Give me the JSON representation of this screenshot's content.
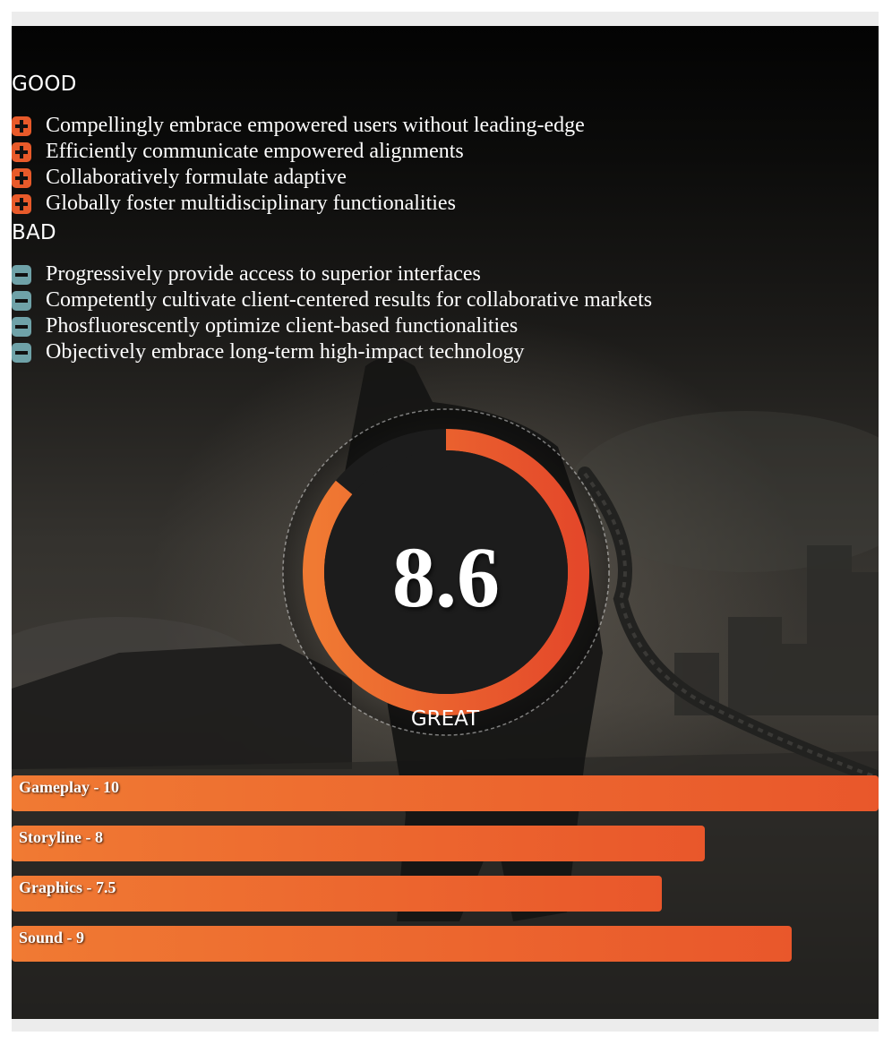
{
  "good": {
    "heading": "GOOD",
    "items": [
      "Compellingly embrace empowered users without leading-edge",
      "Efficiently communicate empowered alignments",
      "Collaboratively formulate adaptive",
      "Globally foster multidisciplinary functionalities"
    ]
  },
  "bad": {
    "heading": "BAD",
    "items": [
      "Progressively provide access to superior interfaces",
      "Competently cultivate client-centered results for collaborative markets",
      "Phosfluorescently optimize client-based functionalities",
      "Objectively embrace long-term high-impact technology"
    ]
  },
  "score": {
    "value": "8.6",
    "value_fraction": 0.86,
    "verdict": "GREAT"
  },
  "ratings": [
    {
      "label": "Gameplay - 10",
      "value": 10
    },
    {
      "label": "Storyline - 8",
      "value": 8
    },
    {
      "label": "Graphics - 7.5",
      "value": 7.5
    },
    {
      "label": "Sound - 9",
      "value": 9
    }
  ],
  "colors": {
    "accent_start": "#f07a33",
    "accent_end": "#e9572b",
    "plus_icon": "#e85a2a",
    "minus_icon": "#6fa2a8",
    "score_track": "#1c1c1c"
  },
  "icons": {
    "good_item": "plus-icon",
    "bad_item": "minus-icon"
  }
}
